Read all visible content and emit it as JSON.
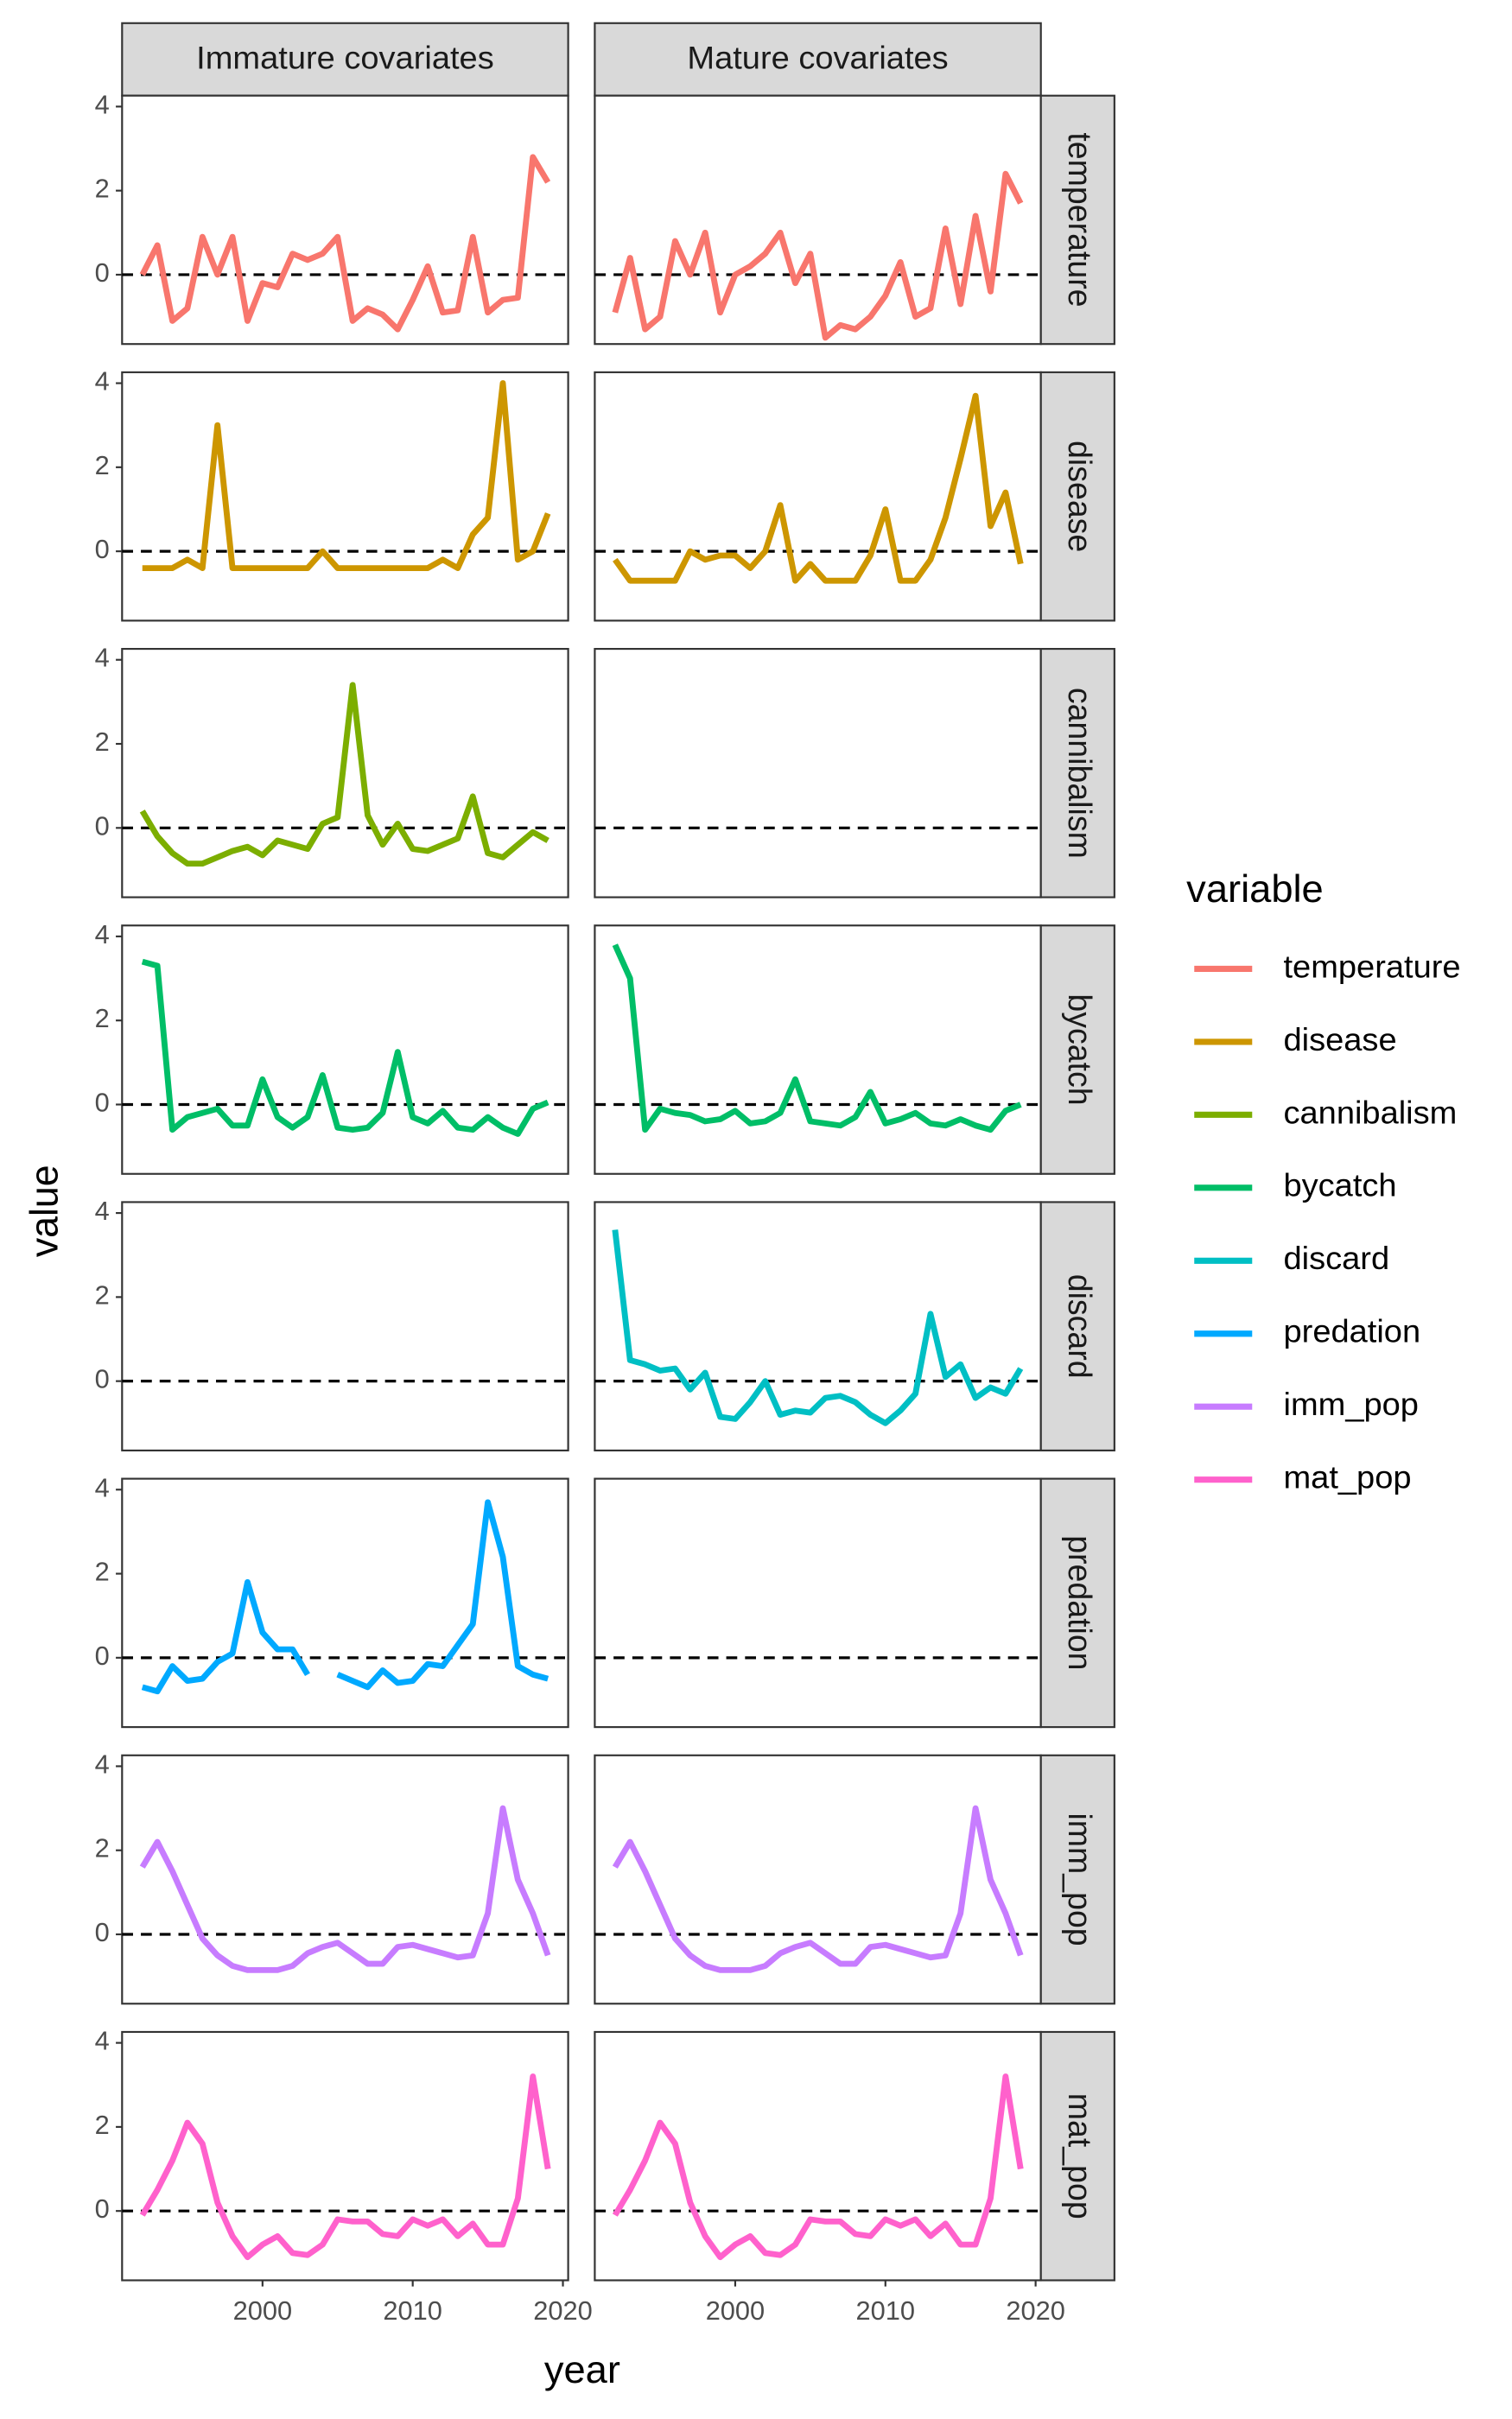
{
  "chart_data": {
    "type": "line",
    "facets": [
      "Immature covariates",
      "Mature covariates"
    ],
    "xlabel": "year",
    "ylabel": "value",
    "legend_title": "variable",
    "x": [
      1992,
      1993,
      1994,
      1995,
      1996,
      1997,
      1998,
      1999,
      2000,
      2001,
      2002,
      2003,
      2004,
      2005,
      2006,
      2007,
      2008,
      2009,
      2010,
      2011,
      2012,
      2013,
      2014,
      2015,
      2016,
      2017,
      2018,
      2019
    ],
    "xlim": [
      1990.65,
      2020.35
    ],
    "xticks": [
      2000,
      2010,
      2020
    ],
    "ylim": [
      -1.65,
      4.26
    ],
    "yticks": [
      0,
      2,
      4
    ],
    "hline": 0,
    "series": [
      {
        "name": "temperature",
        "color": "#F8766D",
        "values": [
          [
            0,
            0.7,
            -1.1,
            -0.8,
            0.9,
            0,
            0.9,
            -1.1,
            -0.2,
            -0.3,
            0.5,
            0.35,
            0.5,
            0.9,
            -1.1,
            -0.8,
            -0.95,
            -1.3,
            -0.6,
            0.2,
            -0.9,
            -0.85,
            0.9,
            -0.9,
            -0.6,
            -0.55,
            2.8,
            2.2
          ],
          [
            -0.9,
            0.4,
            -1.3,
            -1.0,
            0.8,
            0,
            1.0,
            -0.9,
            0,
            0.2,
            0.5,
            1.0,
            -0.2,
            0.5,
            -1.5,
            -1.2,
            -1.3,
            -1.0,
            -0.5,
            0.3,
            -1.0,
            -0.8,
            1.1,
            -0.7,
            1.4,
            -0.4,
            2.4,
            1.7
          ]
        ]
      },
      {
        "name": "disease",
        "color": "#CD9600",
        "values": [
          [
            -0.4,
            -0.4,
            -0.4,
            -0.2,
            -0.4,
            3.0,
            -0.4,
            -0.4,
            -0.4,
            -0.4,
            -0.4,
            -0.4,
            0,
            -0.4,
            -0.4,
            -0.4,
            -0.4,
            -0.4,
            -0.4,
            -0.4,
            -0.2,
            -0.4,
            0.4,
            0.8,
            4.0,
            -0.2,
            0,
            0.9
          ],
          [
            -0.2,
            -0.7,
            -0.7,
            -0.7,
            -0.7,
            0,
            -0.2,
            -0.1,
            -0.1,
            -0.4,
            0,
            1.1,
            -0.7,
            -0.3,
            -0.7,
            -0.7,
            -0.7,
            -0.1,
            1.0,
            -0.7,
            -0.7,
            -0.2,
            0.8,
            2.2,
            3.7,
            0.6,
            1.4,
            -0.3
          ]
        ]
      },
      {
        "name": "cannibalism",
        "color": "#7CAE00",
        "values": [
          [
            0.4,
            -0.2,
            -0.6,
            -0.85,
            -0.85,
            -0.7,
            -0.55,
            -0.45,
            -0.65,
            -0.3,
            -0.4,
            -0.5,
            0.1,
            0.25,
            3.4,
            0.3,
            -0.4,
            0.1,
            -0.5,
            -0.55,
            -0.4,
            -0.25,
            0.75,
            -0.6,
            -0.7,
            -0.4,
            -0.1,
            -0.3
          ],
          null
        ]
      },
      {
        "name": "bycatch",
        "color": "#00BE67",
        "values": [
          [
            3.4,
            3.3,
            -0.6,
            -0.3,
            -0.2,
            -0.1,
            -0.5,
            -0.5,
            0.6,
            -0.3,
            -0.55,
            -0.3,
            0.7,
            -0.55,
            -0.6,
            -0.55,
            -0.2,
            1.25,
            -0.3,
            -0.45,
            -0.15,
            -0.55,
            -0.6,
            -0.3,
            -0.55,
            -0.7,
            -0.1,
            0.05
          ],
          [
            3.8,
            3.0,
            -0.6,
            -0.1,
            -0.2,
            -0.25,
            -0.4,
            -0.35,
            -0.15,
            -0.45,
            -0.4,
            -0.2,
            0.6,
            -0.4,
            -0.45,
            -0.5,
            -0.3,
            0.3,
            -0.45,
            -0.35,
            -0.2,
            -0.45,
            -0.5,
            -0.35,
            -0.5,
            -0.6,
            -0.15,
            0
          ]
        ]
      },
      {
        "name": "discard",
        "color": "#00BFC4",
        "values": [
          null,
          [
            3.6,
            0.5,
            0.4,
            0.25,
            0.3,
            -0.2,
            0.2,
            -0.85,
            -0.9,
            -0.5,
            0,
            -0.8,
            -0.7,
            -0.75,
            -0.4,
            -0.35,
            -0.5,
            -0.8,
            -1.0,
            -0.7,
            -0.3,
            1.6,
            0.1,
            0.4,
            -0.4,
            -0.15,
            -0.3,
            0.3
          ]
        ]
      },
      {
        "name": "predation",
        "color": "#00A9FF",
        "values": [
          [
            -0.7,
            -0.8,
            -0.2,
            -0.55,
            -0.5,
            -0.1,
            0.1,
            1.8,
            0.6,
            0.2,
            0.2,
            -0.4,
            null,
            -0.4,
            -0.55,
            -0.7,
            -0.3,
            -0.6,
            -0.55,
            -0.15,
            -0.2,
            0.3,
            0.8,
            3.7,
            2.4,
            -0.2,
            -0.4,
            -0.5
          ],
          null
        ]
      },
      {
        "name": "imm_pop",
        "color": "#C77CFF",
        "values": [
          [
            1.6,
            2.2,
            1.5,
            0.7,
            -0.1,
            -0.5,
            -0.75,
            -0.85,
            -0.85,
            -0.85,
            -0.75,
            -0.45,
            -0.3,
            -0.2,
            -0.45,
            -0.7,
            -0.7,
            -0.3,
            -0.25,
            -0.35,
            -0.45,
            -0.55,
            -0.5,
            0.5,
            3.0,
            1.3,
            0.5,
            -0.5
          ],
          [
            1.6,
            2.2,
            1.5,
            0.7,
            -0.1,
            -0.5,
            -0.75,
            -0.85,
            -0.85,
            -0.85,
            -0.75,
            -0.45,
            -0.3,
            -0.2,
            -0.45,
            -0.7,
            -0.7,
            -0.3,
            -0.25,
            -0.35,
            -0.45,
            -0.55,
            -0.5,
            0.5,
            3.0,
            1.3,
            0.5,
            -0.5
          ]
        ]
      },
      {
        "name": "mat_pop",
        "color": "#FF61CC",
        "values": [
          [
            -0.1,
            0.5,
            1.2,
            2.1,
            1.6,
            0.2,
            -0.6,
            -1.1,
            -0.8,
            -0.6,
            -1.0,
            -1.05,
            -0.8,
            -0.2,
            -0.25,
            -0.25,
            -0.55,
            -0.6,
            -0.2,
            -0.35,
            -0.2,
            -0.6,
            -0.3,
            -0.8,
            -0.8,
            0.3,
            3.2,
            1.0
          ],
          [
            -0.1,
            0.5,
            1.2,
            2.1,
            1.6,
            0.2,
            -0.6,
            -1.1,
            -0.8,
            -0.6,
            -1.0,
            -1.05,
            -0.8,
            -0.2,
            -0.25,
            -0.25,
            -0.55,
            -0.6,
            -0.2,
            -0.35,
            -0.2,
            -0.6,
            -0.3,
            -0.8,
            -0.8,
            0.3,
            3.2,
            1.0
          ]
        ]
      }
    ]
  }
}
